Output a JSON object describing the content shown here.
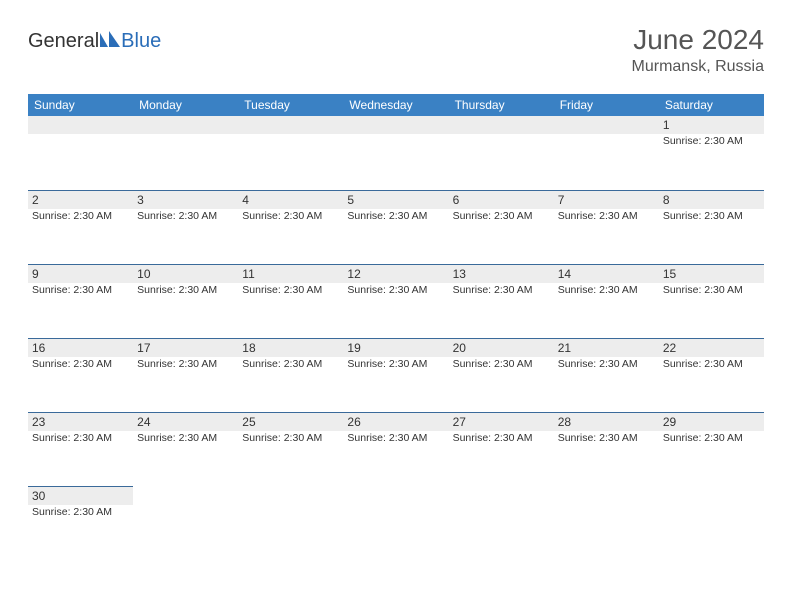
{
  "logo": {
    "text1": "General",
    "text2": "Blue"
  },
  "title": "June 2024",
  "location": "Murmansk, Russia",
  "colors": {
    "header_bg": "#3a81c4",
    "row_border": "#3a6a9a",
    "daynum_bg": "#ededed",
    "logo_blue": "#2a6db8"
  },
  "weekdays": [
    "Sunday",
    "Monday",
    "Tuesday",
    "Wednesday",
    "Thursday",
    "Friday",
    "Saturday"
  ],
  "weeks": [
    [
      {
        "empty": true
      },
      {
        "empty": true
      },
      {
        "empty": true
      },
      {
        "empty": true
      },
      {
        "empty": true
      },
      {
        "empty": true
      },
      {
        "day": "1",
        "info": "Sunrise: 2:30 AM"
      }
    ],
    [
      {
        "day": "2",
        "info": "Sunrise: 2:30 AM"
      },
      {
        "day": "3",
        "info": "Sunrise: 2:30 AM"
      },
      {
        "day": "4",
        "info": "Sunrise: 2:30 AM"
      },
      {
        "day": "5",
        "info": "Sunrise: 2:30 AM"
      },
      {
        "day": "6",
        "info": "Sunrise: 2:30 AM"
      },
      {
        "day": "7",
        "info": "Sunrise: 2:30 AM"
      },
      {
        "day": "8",
        "info": "Sunrise: 2:30 AM"
      }
    ],
    [
      {
        "day": "9",
        "info": "Sunrise: 2:30 AM"
      },
      {
        "day": "10",
        "info": "Sunrise: 2:30 AM"
      },
      {
        "day": "11",
        "info": "Sunrise: 2:30 AM"
      },
      {
        "day": "12",
        "info": "Sunrise: 2:30 AM"
      },
      {
        "day": "13",
        "info": "Sunrise: 2:30 AM"
      },
      {
        "day": "14",
        "info": "Sunrise: 2:30 AM"
      },
      {
        "day": "15",
        "info": "Sunrise: 2:30 AM"
      }
    ],
    [
      {
        "day": "16",
        "info": "Sunrise: 2:30 AM"
      },
      {
        "day": "17",
        "info": "Sunrise: 2:30 AM"
      },
      {
        "day": "18",
        "info": "Sunrise: 2:30 AM"
      },
      {
        "day": "19",
        "info": "Sunrise: 2:30 AM"
      },
      {
        "day": "20",
        "info": "Sunrise: 2:30 AM"
      },
      {
        "day": "21",
        "info": "Sunrise: 2:30 AM"
      },
      {
        "day": "22",
        "info": "Sunrise: 2:30 AM"
      }
    ],
    [
      {
        "day": "23",
        "info": "Sunrise: 2:30 AM"
      },
      {
        "day": "24",
        "info": "Sunrise: 2:30 AM"
      },
      {
        "day": "25",
        "info": "Sunrise: 2:30 AM"
      },
      {
        "day": "26",
        "info": "Sunrise: 2:30 AM"
      },
      {
        "day": "27",
        "info": "Sunrise: 2:30 AM"
      },
      {
        "day": "28",
        "info": "Sunrise: 2:30 AM"
      },
      {
        "day": "29",
        "info": "Sunrise: 2:30 AM"
      }
    ],
    [
      {
        "day": "30",
        "info": "Sunrise: 2:30 AM"
      },
      {
        "empty": true
      },
      {
        "empty": true
      },
      {
        "empty": true
      },
      {
        "empty": true
      },
      {
        "empty": true
      },
      {
        "empty": true
      }
    ]
  ]
}
